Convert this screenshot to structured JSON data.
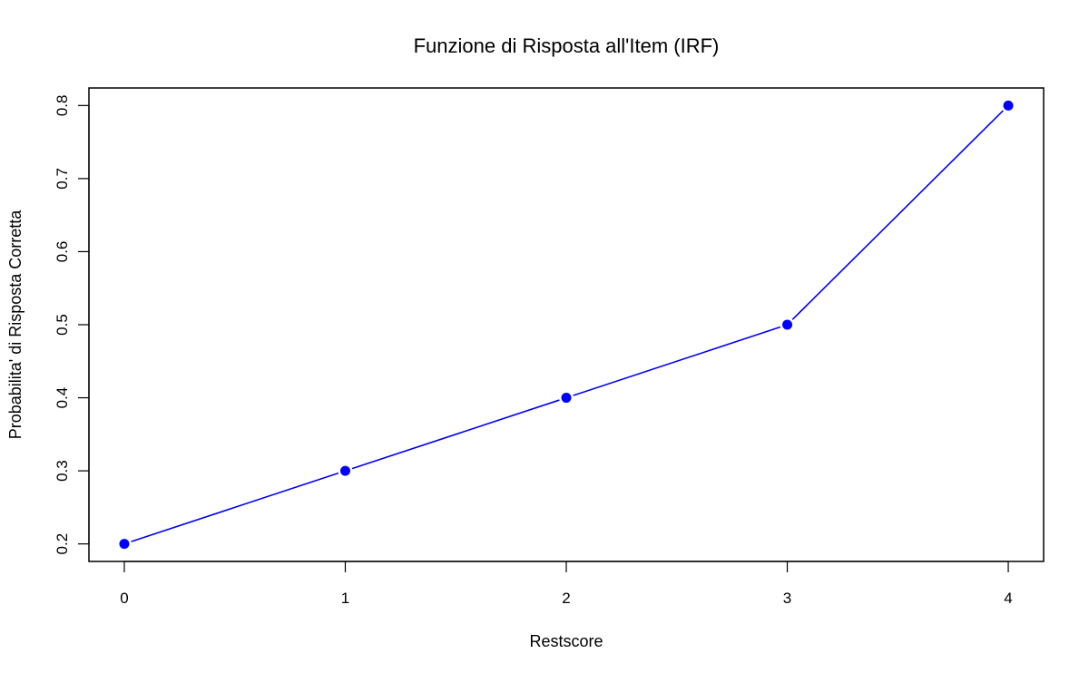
{
  "chart_data": {
    "type": "line",
    "title": "Funzione di Risposta all'Item (IRF)",
    "xlabel": "Restscore",
    "ylabel": "Probabilita' di Risposta Corretta",
    "x": [
      0,
      1,
      2,
      3,
      4
    ],
    "series": [
      {
        "values": [
          0.2,
          0.3,
          0.4,
          0.5,
          0.8
        ],
        "color": "#0000ff"
      }
    ],
    "xlim": [
      -0.16,
      4.16
    ],
    "ylim": [
      0.176,
      0.824
    ],
    "xticks": [
      "0",
      "1",
      "2",
      "3",
      "4"
    ],
    "yticks": [
      "0.2",
      "0.3",
      "0.4",
      "0.5",
      "0.6",
      "0.7",
      "0.8"
    ],
    "grid": false,
    "markers": "filled-circle"
  }
}
